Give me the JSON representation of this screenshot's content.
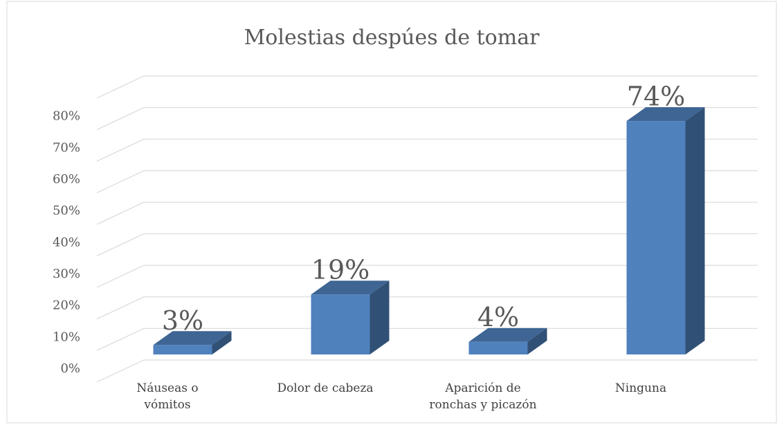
{
  "chart_data": {
    "type": "bar3d",
    "title": "Molestias despúes de tomar",
    "categories": [
      "Náuseas o vómitos",
      "Dolor de cabeza",
      "Aparición de ronchas y picazón",
      "Ninguna"
    ],
    "values": [
      3,
      19,
      4,
      74
    ],
    "value_labels": [
      "3%",
      "19%",
      "4%",
      "74%"
    ],
    "color": "#4f81bd",
    "ylim": [
      0,
      90
    ],
    "yticks": [
      {
        "value": 0,
        "label": "0%"
      },
      {
        "value": 10,
        "label": "10%"
      },
      {
        "value": 20,
        "label": "20%"
      },
      {
        "value": 30,
        "label": "30%"
      },
      {
        "value": 40,
        "label": "40%"
      },
      {
        "value": 50,
        "label": "50%"
      },
      {
        "value": 60,
        "label": "60%"
      },
      {
        "value": 70,
        "label": "70%"
      },
      {
        "value": 80,
        "label": "80%"
      }
    ],
    "grid": true
  }
}
